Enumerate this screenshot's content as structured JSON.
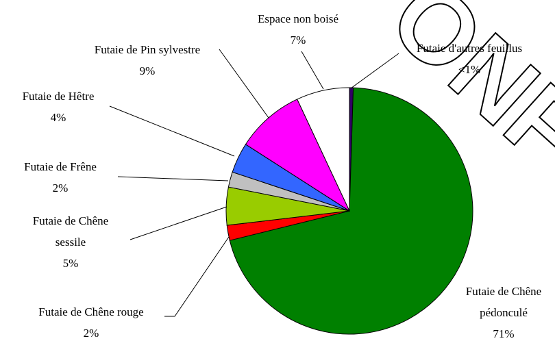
{
  "chart_data": {
    "type": "pie",
    "categories": [
      "Futaie d'autres feuillus",
      "Futaie de Chêne pédonculé",
      "Futaie de Chêne rouge",
      "Futaie de Chêne sessile",
      "Futaie de Frêne",
      "Futaie de Hêtre",
      "Futaie de Pin sylvestre",
      "Espace non boisé"
    ],
    "values": [
      0.5,
      71,
      2,
      5,
      2,
      4,
      9,
      7
    ],
    "value_labels": [
      "<1%",
      "71%",
      "2%",
      "5%",
      "2%",
      "4%",
      "9%",
      "7%"
    ],
    "colors": [
      "#330066",
      "#008000",
      "#ff0000",
      "#99cc00",
      "#c0c0c0",
      "#3366ff",
      "#ff00ff",
      "#ffffff"
    ],
    "watermark": "ONF"
  }
}
